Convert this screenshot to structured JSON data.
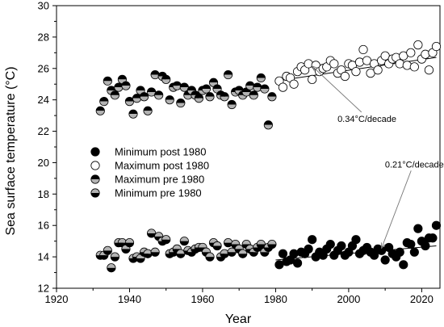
{
  "chart_data": {
    "type": "scatter",
    "xlabel": "Year",
    "ylabel": "Sea surface temperature (°C)",
    "xlim": [
      1920,
      2025
    ],
    "ylim": [
      12,
      30
    ],
    "x_ticks": [
      1920,
      1940,
      1960,
      1980,
      2000,
      2020
    ],
    "y_ticks": [
      12,
      14,
      16,
      18,
      20,
      22,
      24,
      26,
      28,
      30
    ],
    "grid": false,
    "legend_position": "center-left",
    "series": [
      {
        "name": "Minimum post 1980",
        "marker": "filled-circle",
        "color": "#000000",
        "x": [
          1981,
          1982,
          1983,
          1984,
          1985,
          1986,
          1987,
          1988,
          1989,
          1990,
          1991,
          1992,
          1993,
          1994,
          1995,
          1996,
          1997,
          1998,
          1999,
          2000,
          2001,
          2002,
          2003,
          2004,
          2005,
          2006,
          2007,
          2008,
          2009,
          2010,
          2011,
          2012,
          2013,
          2014,
          2015,
          2016,
          2017,
          2018,
          2019,
          2020,
          2021,
          2022,
          2023,
          2024
        ],
        "y": [
          13.5,
          14.2,
          13.7,
          13.8,
          14.2,
          13.6,
          14.3,
          14.2,
          14.5,
          15.1,
          14.0,
          14.3,
          14.1,
          14.5,
          14.8,
          14.1,
          14.4,
          14.7,
          14.1,
          14.3,
          14.7,
          15.1,
          14.2,
          14.4,
          14.6,
          14.3,
          14.1,
          14.5,
          14.4,
          13.8,
          14.6,
          14.2,
          14.0,
          14.3,
          13.5,
          14.9,
          14.8,
          14.3,
          15.8,
          15.0,
          14.7,
          15.2,
          15.2,
          16.0
        ]
      },
      {
        "name": "Maximum post 1980",
        "marker": "open-circle",
        "color": "#000000",
        "x": [
          1981,
          1982,
          1983,
          1984,
          1985,
          1986,
          1987,
          1988,
          1989,
          1990,
          1991,
          1992,
          1993,
          1994,
          1995,
          1996,
          1997,
          1998,
          1999,
          2000,
          2001,
          2002,
          2003,
          2004,
          2005,
          2006,
          2007,
          2008,
          2009,
          2010,
          2011,
          2012,
          2013,
          2014,
          2015,
          2016,
          2017,
          2018,
          2019,
          2020,
          2021,
          2022,
          2023,
          2024
        ],
        "y": [
          25.2,
          24.8,
          25.5,
          25.4,
          25.0,
          25.8,
          26.1,
          25.9,
          26.3,
          25.3,
          26.2,
          25.8,
          26.0,
          26.1,
          26.5,
          26.3,
          25.7,
          25.9,
          25.5,
          26.3,
          26.2,
          25.8,
          26.4,
          27.2,
          26.5,
          25.7,
          26.3,
          25.9,
          26.5,
          26.8,
          26.3,
          26.6,
          26.7,
          26.3,
          26.8,
          26.2,
          27.0,
          26.1,
          27.5,
          26.6,
          26.9,
          25.9,
          27.0,
          27.4
        ]
      },
      {
        "name": "Maximum pre 1980",
        "marker": "half-top",
        "color": "#000000",
        "x": [
          1932,
          1933,
          1934,
          1935,
          1936,
          1937,
          1938,
          1939,
          1940,
          1941,
          1942,
          1943,
          1944,
          1945,
          1946,
          1947,
          1948,
          1949,
          1950,
          1951,
          1952,
          1953,
          1954,
          1955,
          1956,
          1957,
          1958,
          1959,
          1960,
          1961,
          1962,
          1963,
          1964,
          1965,
          1966,
          1967,
          1968,
          1969,
          1970,
          1971,
          1972,
          1973,
          1974,
          1975,
          1976,
          1977,
          1978,
          1979
        ],
        "y": [
          23.3,
          23.9,
          25.2,
          24.6,
          24.3,
          24.8,
          25.3,
          24.9,
          23.9,
          23.1,
          24.1,
          24.6,
          24.2,
          23.3,
          24.5,
          25.6,
          24.3,
          25.5,
          25.3,
          24.0,
          24.8,
          24.9,
          23.8,
          24.8,
          24.3,
          24.6,
          24.3,
          24.1,
          24.6,
          24.7,
          24.2,
          25.1,
          24.7,
          24.3,
          24.2,
          25.6,
          23.7,
          24.5,
          24.6,
          24.3,
          24.5,
          24.9,
          24.3,
          24.8,
          25.4,
          24.7,
          22.4,
          24.2
        ]
      },
      {
        "name": "Minimum pre 1980",
        "marker": "half-bottom",
        "color": "#000000",
        "x": [
          1932,
          1933,
          1934,
          1935,
          1936,
          1937,
          1938,
          1939,
          1940,
          1941,
          1942,
          1943,
          1944,
          1945,
          1946,
          1947,
          1948,
          1949,
          1950,
          1951,
          1952,
          1953,
          1954,
          1955,
          1956,
          1957,
          1958,
          1959,
          1960,
          1961,
          1962,
          1963,
          1964,
          1965,
          1966,
          1967,
          1968,
          1969,
          1970,
          1971,
          1972,
          1973,
          1974,
          1975,
          1976,
          1977,
          1978,
          1979
        ],
        "y": [
          14.1,
          14.1,
          14.4,
          13.3,
          14.0,
          14.9,
          14.9,
          14.5,
          14.9,
          13.9,
          14.0,
          13.9,
          14.3,
          14.2,
          15.5,
          14.3,
          15.3,
          15.0,
          15.1,
          14.2,
          14.3,
          14.5,
          14.2,
          15.0,
          14.4,
          14.3,
          14.5,
          14.6,
          14.6,
          14.3,
          14.0,
          14.9,
          14.7,
          14.0,
          14.2,
          14.9,
          14.3,
          14.8,
          14.5,
          14.2,
          14.8,
          14.5,
          14.3,
          14.6,
          14.8,
          14.3,
          14.6,
          14.8
        ]
      }
    ],
    "trend_lines": [
      {
        "series": "Maximum post 1980",
        "x": [
          1980,
          2024
        ],
        "y": [
          25.2,
          26.7
        ]
      },
      {
        "series": "Minimum post 1980",
        "x": [
          1980,
          2024
        ],
        "y": [
          13.8,
          14.7
        ]
      }
    ],
    "annotations": [
      {
        "text": "0.34°C/decade",
        "arrow_to": [
          1990,
          26.15
        ],
        "label_at": [
          2005,
          22.6
        ]
      },
      {
        "text": "0.21°C/decade",
        "arrow_to": [
          2009,
          14.55
        ],
        "label_at": [
          2018,
          19.7
        ]
      }
    ]
  }
}
